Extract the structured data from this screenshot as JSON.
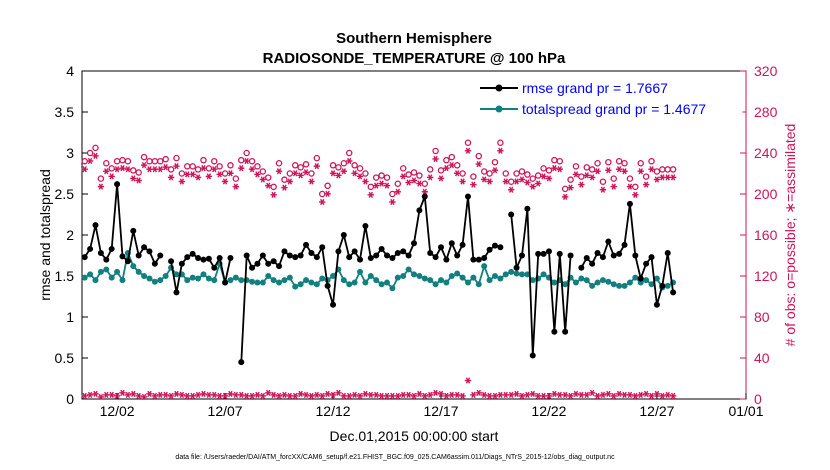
{
  "chart_data": {
    "type": "line",
    "title": "Southern Hemisphere",
    "subtitle": "RADIOSONDE_TEMPERATURE @ 100 hPa",
    "xlabel": "Dec.01,2015 00:00:00 start",
    "ylabel": "rmse and totalspread",
    "ylabel_right": "# of obs: o=possible; ∗=assimilated",
    "ylim": [
      0,
      4
    ],
    "ylim_right": [
      0,
      320
    ],
    "xlim": [
      0.375,
      31.125
    ],
    "x_ticks": [
      {
        "x": 2,
        "label": "12/02"
      },
      {
        "x": 7,
        "label": "12/07"
      },
      {
        "x": 12,
        "label": "12/12"
      },
      {
        "x": 17,
        "label": "12/17"
      },
      {
        "x": 22,
        "label": "12/22"
      },
      {
        "x": 27,
        "label": "12/27"
      },
      {
        "x": 32,
        "label": "01/01"
      }
    ],
    "y_ticks": [
      "0",
      "0.5",
      "1",
      "1.5",
      "2",
      "2.5",
      "3",
      "3.5",
      "4"
    ],
    "y_ticks_right": [
      "0",
      "40",
      "80",
      "120",
      "160",
      "200",
      "240",
      "280",
      "320"
    ],
    "colors": {
      "rmse": "#000000",
      "spread": "#138080",
      "obs": "#d0145a",
      "legend_text": "#0000ff"
    },
    "legend": [
      {
        "name": "rmse",
        "label": "rmse grand pr = 1.7667"
      },
      {
        "name": "spread",
        "label": "totalspread grand pr = 1.4677"
      }
    ],
    "series": [
      {
        "name": "rmse",
        "values": [
          1.73,
          1.83,
          2.12,
          1.78,
          1.7,
          1.83,
          2.62,
          1.74,
          1.68,
          2.05,
          1.75,
          1.85,
          1.8,
          1.65,
          1.75,
          null,
          1.68,
          1.3,
          1.65,
          1.73,
          1.77,
          1.72,
          1.7,
          1.71,
          1.6,
          1.72,
          1.42,
          1.72,
          null,
          0.45,
          1.75,
          1.6,
          1.65,
          1.75,
          1.65,
          1.68,
          1.62,
          1.8,
          1.75,
          1.73,
          1.75,
          1.88,
          1.78,
          1.73,
          1.85,
          1.38,
          1.15,
          1.8,
          2.0,
          1.73,
          1.8,
          1.7,
          2.11,
          1.72,
          1.75,
          1.83,
          1.75,
          1.72,
          1.78,
          1.8,
          1.75,
          1.9,
          2.3,
          2.47,
          1.78,
          1.73,
          1.85,
          1.7,
          1.9,
          1.75,
          1.88,
          2.47,
          1.7,
          1.7,
          1.72,
          1.82,
          1.87,
          1.85,
          null,
          2.25,
          1.6,
          1.75,
          2.32,
          0.53,
          1.77,
          1.77,
          1.8,
          0.82,
          1.77,
          0.82,
          1.75,
          null,
          1.6,
          1.72,
          1.65,
          1.78,
          1.73,
          1.92,
          1.75,
          1.77,
          1.88,
          2.38,
          1.75,
          1.47,
          1.65,
          1.73,
          1.15,
          1.38,
          1.78,
          1.3
        ]
      },
      {
        "name": "spread",
        "values": [
          1.48,
          1.52,
          1.45,
          1.55,
          1.58,
          1.48,
          1.55,
          1.45,
          1.78,
          1.62,
          1.55,
          1.5,
          1.47,
          1.43,
          1.45,
          1.5,
          1.6,
          1.52,
          1.52,
          1.45,
          1.48,
          1.47,
          1.52,
          1.47,
          1.45,
          1.65,
          1.42,
          1.45,
          1.48,
          1.45,
          1.45,
          1.43,
          1.42,
          1.42,
          1.5,
          1.45,
          1.42,
          1.45,
          1.48,
          1.37,
          1.4,
          1.45,
          1.42,
          1.4,
          1.47,
          1.45,
          1.5,
          1.58,
          1.45,
          1.4,
          1.42,
          1.55,
          1.42,
          1.5,
          1.45,
          1.4,
          1.42,
          1.35,
          1.48,
          1.5,
          1.58,
          1.52,
          1.5,
          1.47,
          1.45,
          1.4,
          1.45,
          1.42,
          1.5,
          1.53,
          1.48,
          1.42,
          1.48,
          1.4,
          1.62,
          1.45,
          1.5,
          1.47,
          1.52,
          1.55,
          1.53,
          1.52,
          1.52,
          1.45,
          1.47,
          1.52,
          1.48,
          1.42,
          1.45,
          1.4,
          1.48,
          1.42,
          1.47,
          1.45,
          1.38,
          1.42,
          1.45,
          1.43,
          1.4,
          1.38,
          1.38,
          1.42,
          1.48,
          1.42,
          1.45,
          1.4,
          1.47,
          1.36,
          1.38,
          1.42
        ]
      },
      {
        "name": "obs_possible",
        "values": [
          232,
          240,
          245,
          215,
          230,
          225,
          232,
          233,
          232,
          223,
          221,
          236,
          232,
          232,
          232,
          234,
          224,
          235,
          220,
          227,
          227,
          224,
          233,
          225,
          232,
          227,
          220,
          228,
          215,
          233,
          240,
          232,
          227,
          222,
          216,
          207,
          230,
          214,
          220,
          228,
          226,
          229,
          220,
          235,
          200,
          208,
          228,
          226,
          230,
          240,
          228,
          225,
          220,
          207,
          216,
          218,
          216,
          200,
          210,
          225,
          219,
          221,
          218,
          210,
          224,
          242,
          223,
          233,
          236,
          228,
          220,
          250,
          217,
          237,
          222,
          220,
          231,
          250,
          220,
          212,
          220,
          222,
          219,
          215,
          218,
          225,
          223,
          233,
          232,
          205,
          214,
          227,
          217,
          226,
          224,
          230,
          212,
          231,
          215,
          232,
          230,
          215,
          207,
          230,
          217,
          232,
          222,
          224,
          224,
          224
        ]
      },
      {
        "name": "obs_assimilated",
        "values": [
          3,
          4,
          5,
          2,
          4,
          4,
          3,
          6,
          4,
          5,
          3,
          2,
          5,
          3,
          4,
          4,
          3,
          5,
          4,
          3,
          3,
          4,
          5,
          4,
          4,
          3,
          3,
          5,
          4,
          4,
          3,
          3,
          4,
          3,
          6,
          4,
          3,
          4,
          3,
          3,
          5,
          4,
          3,
          4,
          3,
          5,
          4,
          6,
          3,
          3,
          4,
          3,
          5,
          4,
          4,
          3,
          3,
          3,
          3,
          4,
          4,
          3,
          5,
          3,
          4,
          6,
          5,
          3,
          4,
          4,
          3,
          18,
          4,
          6,
          4,
          3,
          3,
          4,
          4,
          4,
          5,
          3,
          4,
          5,
          3,
          3,
          3,
          5,
          4,
          4,
          3,
          5,
          4,
          4,
          6,
          3,
          4,
          5,
          3,
          5,
          4,
          4,
          3,
          4,
          5,
          3,
          5,
          3,
          4,
          3
        ]
      }
    ],
    "footer": "data file: /Users/raeder/DAI/ATM_forcXX/CAM6_setup/f.e21.FHIST_BGC.f09_025.CAM6assim.011/Diags_NTrS_2015-12/obs_diag_output.nc"
  }
}
